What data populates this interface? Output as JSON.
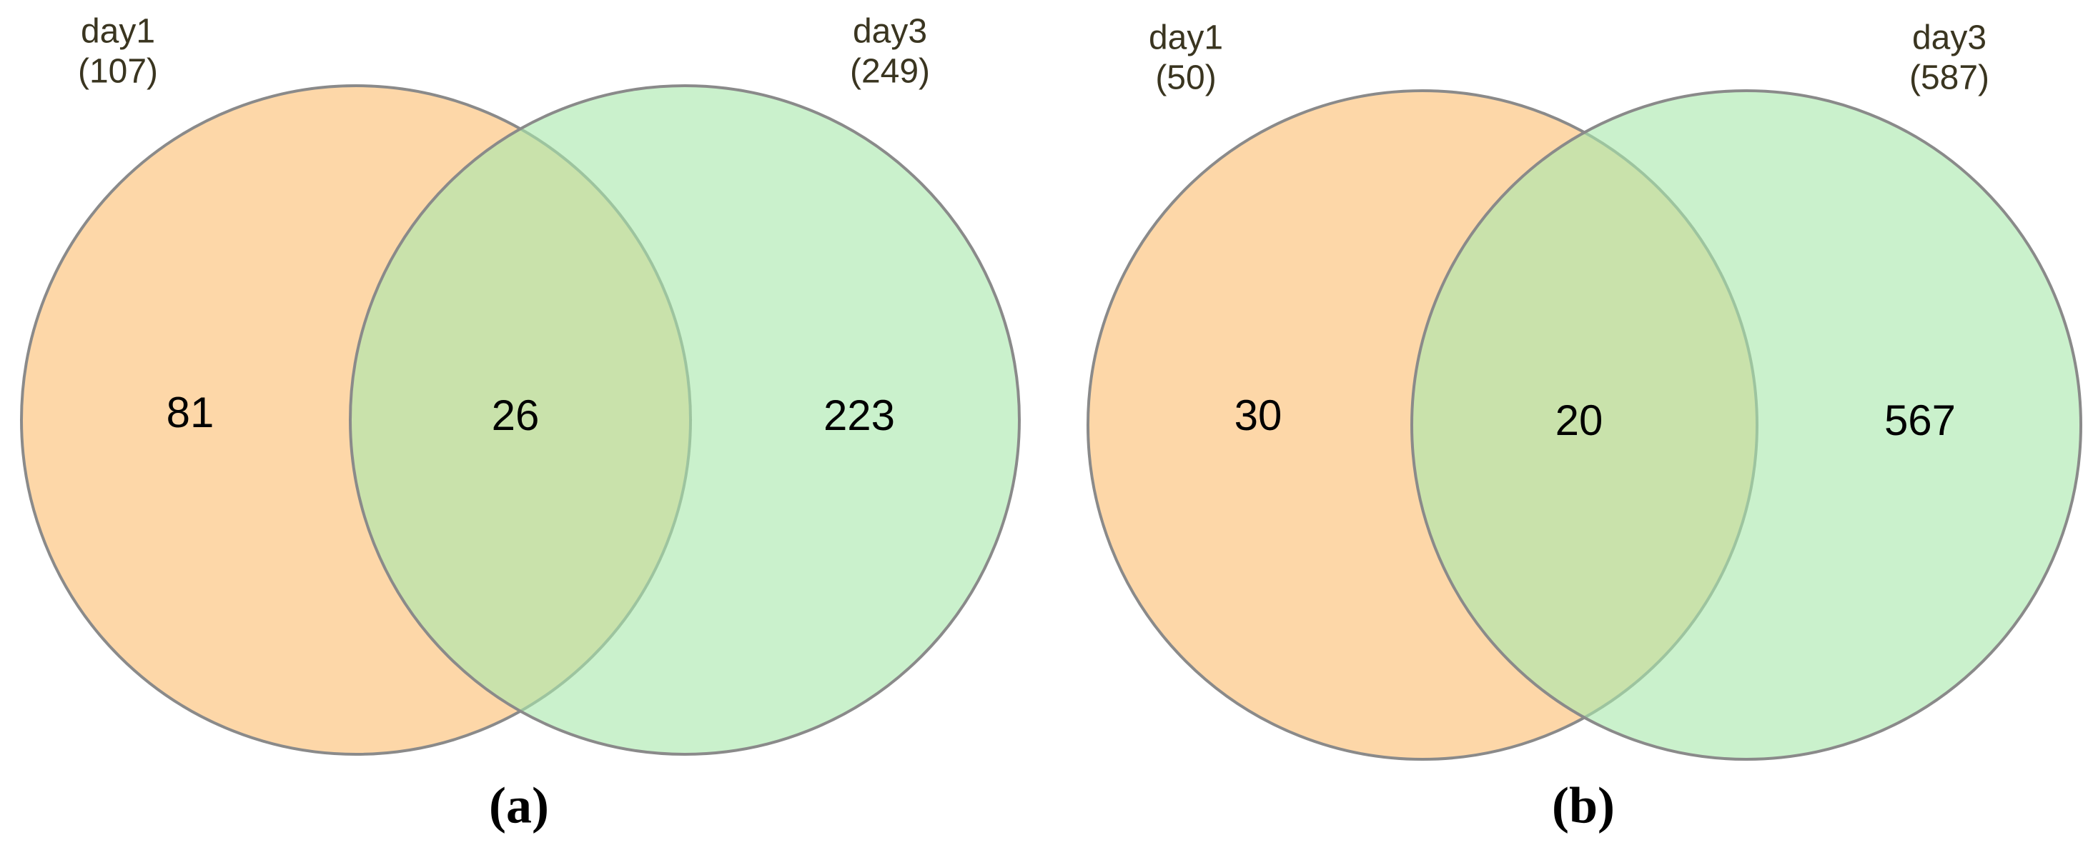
{
  "chart_data": [
    {
      "type": "venn",
      "caption": "(a)",
      "sets": [
        "day1",
        "day3"
      ],
      "values": [
        107,
        249
      ],
      "value_labels": [
        "(107)",
        "(249)"
      ],
      "colors": [
        "#fbbf72",
        "#a9e9ad"
      ],
      "region_values": [
        81,
        26,
        223
      ]
    },
    {
      "type": "venn",
      "caption": "(b)",
      "sets": [
        "day1",
        "day3"
      ],
      "values": [
        50,
        587
      ],
      "value_labels": [
        "(50)",
        "(587)"
      ],
      "colors": [
        "#fbbf72",
        "#a9e9ad"
      ],
      "region_values": [
        30,
        20,
        567
      ]
    }
  ]
}
